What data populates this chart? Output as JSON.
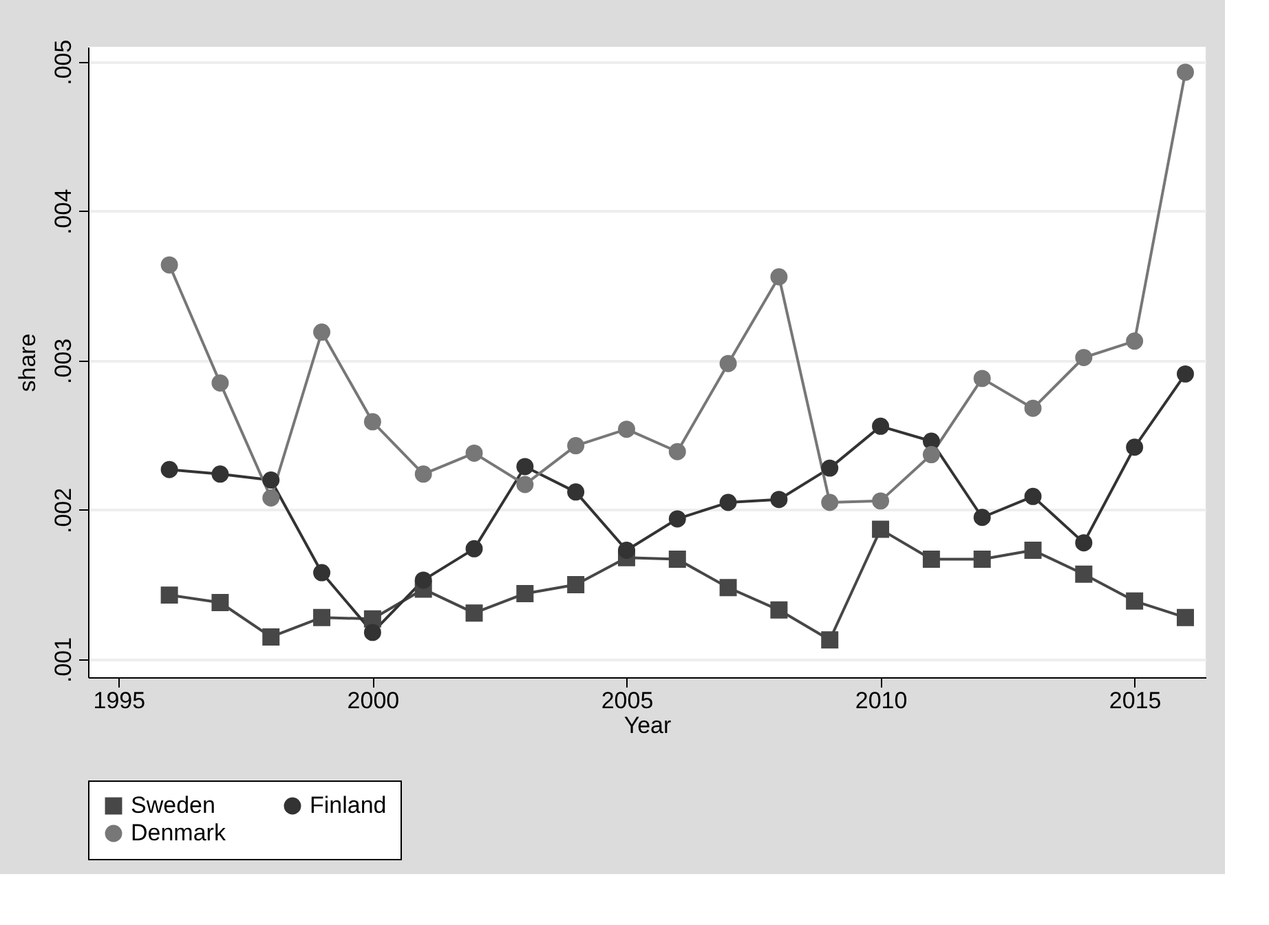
{
  "chart_data": {
    "type": "line",
    "xlabel": "Year",
    "ylabel": "share",
    "x": [
      1996,
      1997,
      1998,
      1999,
      2000,
      2001,
      2002,
      2003,
      2004,
      2005,
      2006,
      2007,
      2008,
      2009,
      2010,
      2011,
      2012,
      2013,
      2014,
      2015,
      2016
    ],
    "series": [
      {
        "name": "Sweden",
        "color": "#474747",
        "marker": "square",
        "values": [
          0.00143,
          0.00138,
          0.00115,
          0.00128,
          0.00127,
          0.00147,
          0.00131,
          0.00144,
          0.0015,
          0.00168,
          0.00167,
          0.00148,
          0.00133,
          0.00113,
          0.00187,
          0.00167,
          0.00167,
          0.00173,
          0.00157,
          0.00139,
          0.00128
        ]
      },
      {
        "name": "Finland",
        "color": "#333333",
        "marker": "circle",
        "values": [
          0.00227,
          0.00224,
          0.0022,
          0.00158,
          0.00118,
          0.00153,
          0.00174,
          0.00229,
          0.00212,
          0.00173,
          0.00194,
          0.00205,
          0.00207,
          0.00228,
          0.00256,
          0.00246,
          0.00195,
          0.00209,
          0.00178,
          0.00242,
          0.00291
        ]
      },
      {
        "name": "Denmark",
        "color": "#777777",
        "marker": "circle",
        "values": [
          0.00364,
          0.00285,
          0.00208,
          0.00319,
          0.00259,
          0.00224,
          0.00238,
          0.00217,
          0.00243,
          0.00254,
          0.00239,
          0.00298,
          0.00356,
          0.00205,
          0.00206,
          0.00237,
          0.00288,
          0.00268,
          0.00302,
          0.00313,
          0.00493
        ]
      }
    ],
    "xlim": [
      1994.4,
      2016.4
    ],
    "xticks": [
      1995,
      2000,
      2005,
      2010,
      2015
    ],
    "ylim": [
      0.00088,
      0.0051
    ],
    "yticks": [
      {
        "value": 0.001,
        "label": ".001"
      },
      {
        "value": 0.002,
        "label": ".002"
      },
      {
        "value": 0.003,
        "label": ".003"
      },
      {
        "value": 0.004,
        "label": ".004"
      },
      {
        "value": 0.005,
        "label": ".005"
      }
    ],
    "grid": "y",
    "legend": "bottom",
    "line_style": "solid"
  }
}
